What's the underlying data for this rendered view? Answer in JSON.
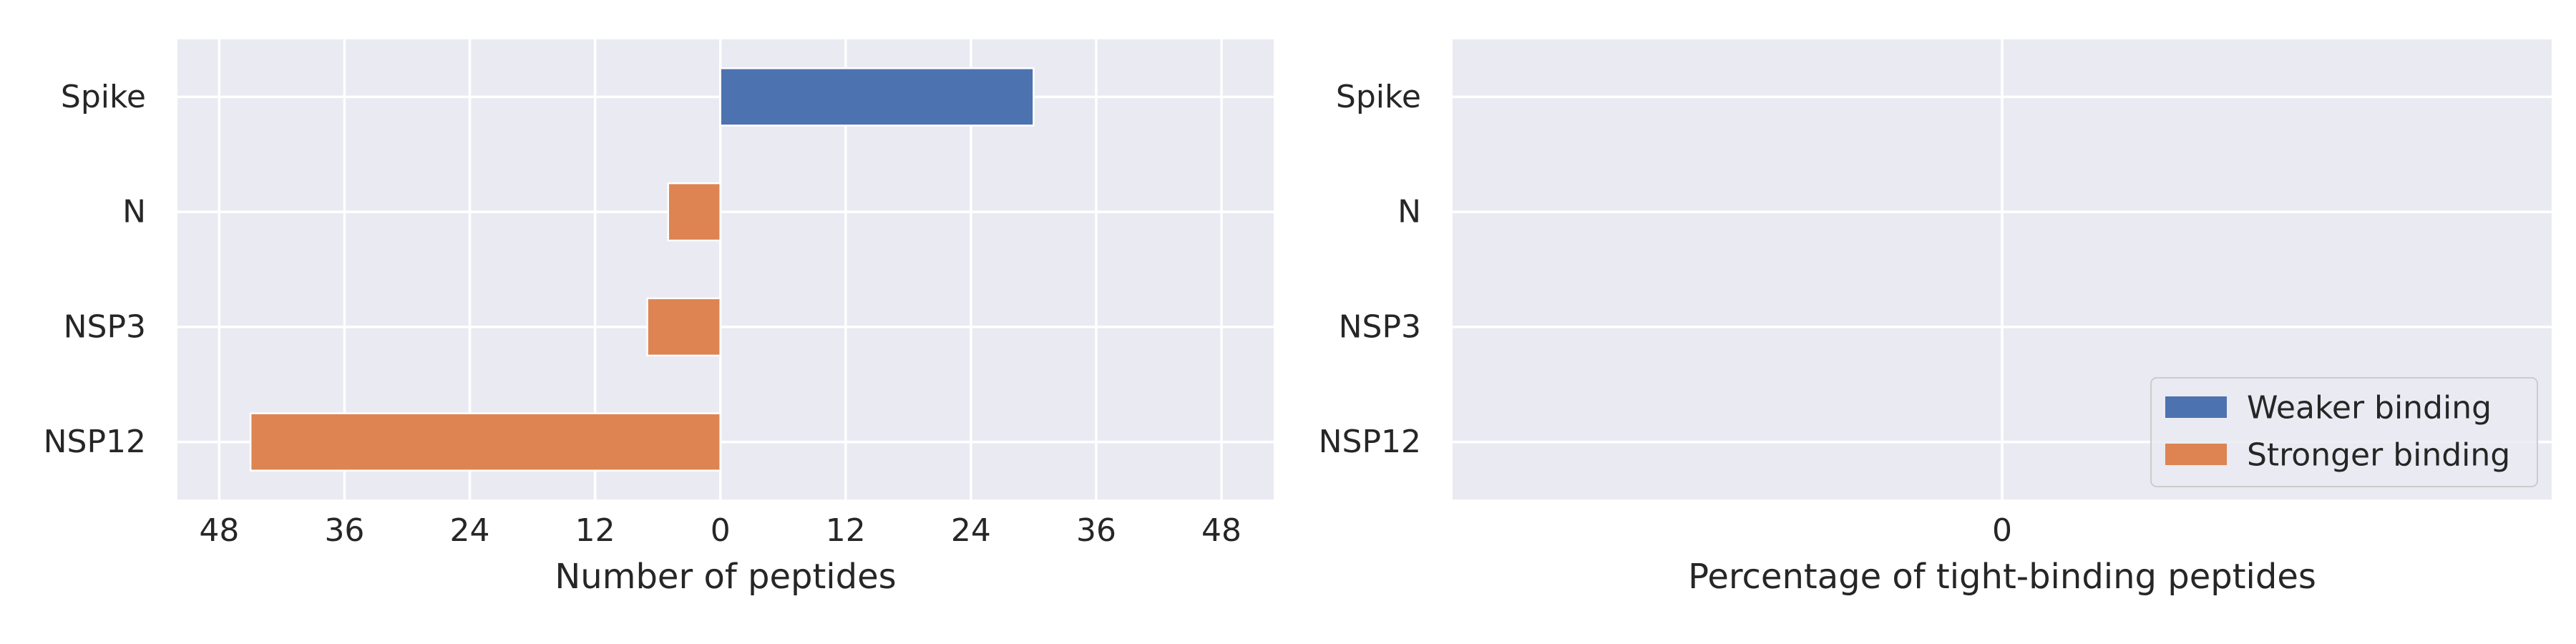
{
  "chart_data": [
    {
      "type": "bar",
      "orientation": "horizontal",
      "categories": [
        "Spike",
        "N",
        "NSP3",
        "NSP12"
      ],
      "series": [
        {
          "name": "Weaker binding",
          "color": "#4c72b0",
          "values": [
            30,
            0,
            0,
            0
          ]
        },
        {
          "name": "Stronger binding",
          "color": "#dd8452",
          "values": [
            0,
            -5,
            -7,
            -45
          ]
        }
      ],
      "xlabel": "Number of peptides",
      "ylabel": "",
      "xlim": [
        -52,
        53
      ],
      "xticks": [
        -48,
        -36,
        -24,
        -12,
        0,
        12,
        24,
        36,
        48
      ],
      "xtick_labels": [
        "48",
        "36",
        "24",
        "12",
        "0",
        "12",
        "24",
        "36",
        "48"
      ],
      "grid": true
    },
    {
      "type": "bar",
      "orientation": "horizontal",
      "categories": [
        "Spike",
        "N",
        "NSP3",
        "NSP12"
      ],
      "series": [
        {
          "name": "Weaker binding",
          "color": "#4c72b0",
          "values": [
            0,
            0,
            0,
            0
          ]
        },
        {
          "name": "Stronger binding",
          "color": "#dd8452",
          "values": [
            0,
            0,
            0,
            0
          ]
        }
      ],
      "xlabel": "Percentage of tight-binding peptides",
      "ylabel": "",
      "xticks": [
        0
      ],
      "xtick_labels": [
        "0"
      ],
      "grid": true,
      "legend": {
        "placement": "lower-right",
        "entries": [
          {
            "label": "Weaker binding",
            "color": "#4c72b0"
          },
          {
            "label": "Stronger binding",
            "color": "#dd8452"
          }
        ]
      }
    }
  ]
}
